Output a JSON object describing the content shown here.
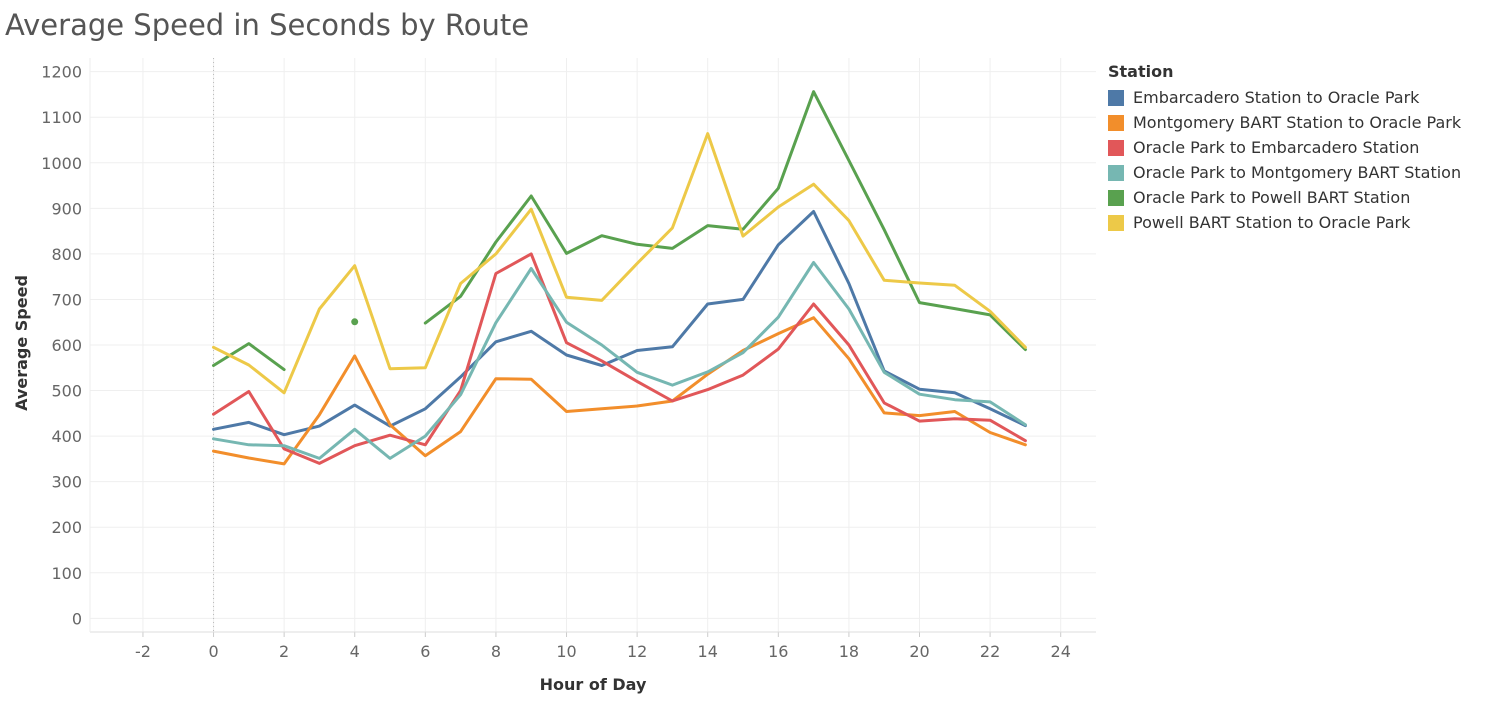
{
  "chart_data": {
    "type": "line",
    "title": "Average Speed in Seconds by Route",
    "xlabel": "Hour of Day",
    "ylabel": "Average Speed",
    "xlim": [
      -3.5,
      25
    ],
    "ylim": [
      -30,
      1230
    ],
    "x_ticks": [
      -2,
      0,
      2,
      4,
      6,
      8,
      10,
      12,
      14,
      16,
      18,
      20,
      22,
      24
    ],
    "y_ticks": [
      0,
      100,
      200,
      300,
      400,
      500,
      600,
      700,
      800,
      900,
      1000,
      1100,
      1200
    ],
    "grid": true,
    "legend_title": "Station",
    "legend_position": "right",
    "x": [
      0,
      1,
      2,
      3,
      4,
      5,
      6,
      7,
      8,
      9,
      10,
      11,
      12,
      13,
      14,
      15,
      16,
      17,
      18,
      19,
      20,
      21,
      22,
      23
    ],
    "series": [
      {
        "name": "Embarcadero Station to Oracle Park",
        "color": "#4e79a7",
        "values": [
          415,
          430,
          403,
          422,
          468,
          422,
          460,
          530,
          607,
          630,
          578,
          555,
          588,
          596,
          690,
          700,
          820,
          893,
          735,
          543,
          503,
          495,
          460,
          423
        ]
      },
      {
        "name": "Montgomery BART Station to Oracle Park",
        "color": "#f28e2b",
        "values": [
          367,
          352,
          339,
          447,
          576,
          425,
          357,
          410,
          526,
          525,
          454,
          460,
          466,
          477,
          536,
          588,
          625,
          660,
          570,
          451,
          445,
          454,
          408,
          381
        ]
      },
      {
        "name": "Oracle Park to Embarcadero Station",
        "color": "#e15759",
        "values": [
          448,
          498,
          372,
          340,
          379,
          402,
          381,
          500,
          757,
          800,
          605,
          565,
          520,
          477,
          502,
          534,
          591,
          690,
          600,
          473,
          433,
          438,
          435,
          390
        ]
      },
      {
        "name": "Oracle Park to Montgomery BART Station",
        "color": "#76b7b2",
        "values": [
          394,
          381,
          379,
          351,
          415,
          351,
          400,
          491,
          649,
          768,
          650,
          600,
          540,
          512,
          541,
          583,
          661,
          781,
          679,
          540,
          492,
          480,
          475,
          425
        ]
      },
      {
        "name": "Oracle Park to Powell BART Station",
        "color": "#59a14f",
        "values": [
          555,
          603,
          546,
          null,
          651,
          null,
          648,
          707,
          826,
          927,
          801,
          840,
          821,
          812,
          862,
          854,
          944,
          1156,
          1005,
          853,
          693,
          680,
          666,
          590
        ]
      },
      {
        "name": "Powell BART Station to Oracle Park",
        "color": "#edc948",
        "values": [
          595,
          556,
          495,
          679,
          774,
          548,
          550,
          735,
          800,
          898,
          705,
          698,
          779,
          857,
          1064,
          839,
          903,
          953,
          873,
          742,
          736,
          731,
          674,
          595
        ]
      }
    ]
  }
}
